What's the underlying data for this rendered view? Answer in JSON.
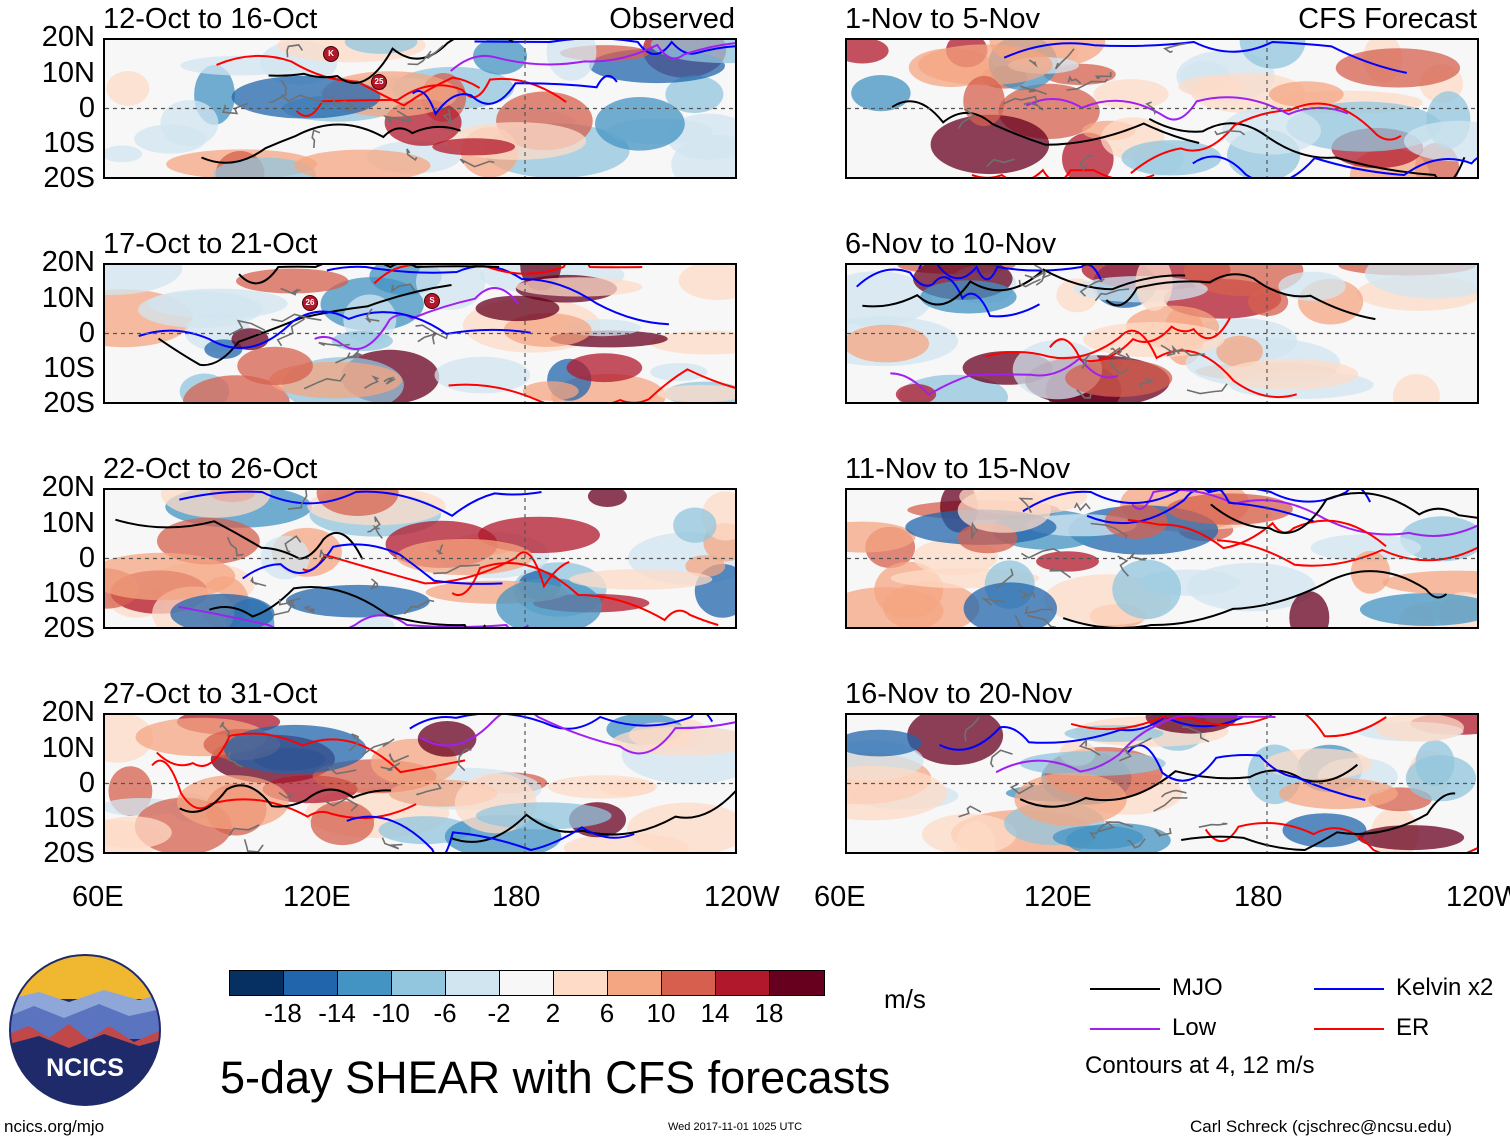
{
  "panels": [
    {
      "id": "p1",
      "title": "12-Oct to 16-Oct",
      "label": "Observed",
      "side": "left",
      "row": 0
    },
    {
      "id": "p2",
      "title": "17-Oct to 21-Oct",
      "label": "",
      "side": "left",
      "row": 1
    },
    {
      "id": "p3",
      "title": "22-Oct to 26-Oct",
      "label": "",
      "side": "left",
      "row": 2
    },
    {
      "id": "p4",
      "title": "27-Oct to 31-Oct",
      "label": "",
      "side": "left",
      "row": 3
    },
    {
      "id": "p5",
      "title": "1-Nov to 5-Nov",
      "label": "CFS Forecast",
      "side": "right",
      "row": 0
    },
    {
      "id": "p6",
      "title": "6-Nov to 10-Nov",
      "label": "",
      "side": "right",
      "row": 1
    },
    {
      "id": "p7",
      "title": "11-Nov to 15-Nov",
      "label": "",
      "side": "right",
      "row": 2
    },
    {
      "id": "p8",
      "title": "16-Nov to 20-Nov",
      "label": "",
      "side": "right",
      "row": 3
    }
  ],
  "lat_labels": [
    "20N",
    "10N",
    "0",
    "10S",
    "20S"
  ],
  "lon_labels": [
    "60E",
    "120E",
    "180",
    "120W"
  ],
  "colorbar": {
    "colors": [
      "#053061",
      "#2166ac",
      "#4393c3",
      "#92c5de",
      "#d1e5f0",
      "#f7f7f7",
      "#fddbc7",
      "#f4a582",
      "#d6604d",
      "#b2182b",
      "#67001f"
    ],
    "ticks": [
      "-18",
      "-14",
      "-10",
      "-6",
      "-2",
      "2",
      "6",
      "10",
      "14",
      "18"
    ],
    "units": "m/s"
  },
  "legend": {
    "items": [
      {
        "label": "MJO",
        "color": "#000000"
      },
      {
        "label": "Kelvin x2",
        "color": "#0000ff"
      },
      {
        "label": "Low",
        "color": "#a020f0"
      },
      {
        "label": "ER",
        "color": "#ff0000"
      }
    ],
    "contours_note": "Contours at 4, 12 m/s"
  },
  "logo_text": "NCICS",
  "main_title": "5-day SHEAR with CFS forecasts",
  "footer": {
    "url": "ncics.org/mjo",
    "timestamp": "Wed 2017-11-01 1025 UTC",
    "credit": "Carl Schreck (cjschrec@ncsu.edu)"
  },
  "storm_markers": [
    {
      "panel": "p1",
      "label": "K"
    },
    {
      "panel": "p1",
      "label": "25"
    },
    {
      "panel": "p2",
      "label": "26"
    },
    {
      "panel": "p2",
      "label": "S"
    }
  ]
}
